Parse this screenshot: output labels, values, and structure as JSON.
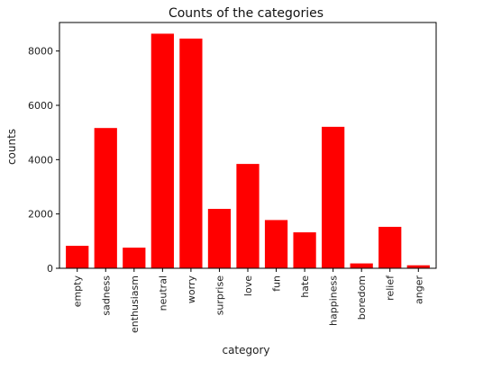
{
  "chart_data": {
    "type": "bar",
    "title": "Counts of the categories",
    "xlabel": "category",
    "ylabel": "counts",
    "categories": [
      "empty",
      "sadness",
      "enthusiasm",
      "neutral",
      "worry",
      "surprise",
      "love",
      "fun",
      "hate",
      "happiness",
      "boredom",
      "relief",
      "anger"
    ],
    "values": [
      827,
      5165,
      759,
      8638,
      8459,
      2187,
      3842,
      1776,
      1323,
      5209,
      179,
      1526,
      110
    ],
    "ylim": [
      0,
      9050
    ],
    "yticks": [
      0,
      2000,
      4000,
      6000,
      8000
    ],
    "grid": false,
    "bar_color": "#ff0000",
    "axis_color": "#000000"
  }
}
